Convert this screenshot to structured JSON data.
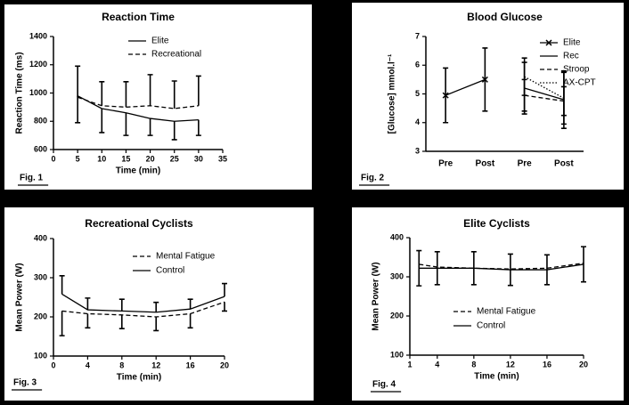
{
  "chart_data": [
    {
      "type": "line",
      "title": "Reaction Time",
      "xlabel": "Time (min)",
      "ylabel": "Reaction Time (ms)",
      "figure_label": "Fig. 1",
      "x": [
        5,
        10,
        15,
        20,
        25,
        30
      ],
      "xlim": [
        0,
        35
      ],
      "xticks": [
        0,
        5,
        10,
        15,
        20,
        25,
        30,
        35
      ],
      "ylim": [
        600,
        1400
      ],
      "yticks": [
        600,
        800,
        1000,
        1200,
        1400
      ],
      "series": [
        {
          "name": "Elite",
          "color": "#000000",
          "style": "solid",
          "values": [
            980,
            890,
            860,
            820,
            800,
            810
          ],
          "errors": [
            190,
            170,
            160,
            120,
            130,
            110
          ],
          "error_direction": "down"
        },
        {
          "name": "Recreational",
          "color": "#000000",
          "style": "dashed",
          "values": [
            970,
            910,
            900,
            910,
            890,
            910
          ],
          "errors": [
            220,
            170,
            180,
            220,
            195,
            210
          ],
          "error_direction": "up"
        }
      ]
    },
    {
      "type": "line",
      "title": "Blood Glucose",
      "ylabel": "[Glucose] mmol.l⁻¹",
      "figure_label": "Fig. 2",
      "categories": [
        "Pre",
        "Post",
        "Pre",
        "Post"
      ],
      "ylim": [
        3,
        7
      ],
      "yticks": [
        3,
        4,
        5,
        6,
        7
      ],
      "series": [
        {
          "name": "Elite",
          "color": "#000000",
          "style": "solid",
          "marker": "x",
          "values": [
            4.95,
            5.5,
            null,
            null
          ],
          "errors": [
            0.95,
            1.1,
            null,
            null
          ],
          "error_direction": "both"
        },
        {
          "name": "Rec",
          "color": "#000000",
          "style": "solid",
          "values": [
            null,
            null,
            5.2,
            4.8
          ],
          "errors": [
            null,
            null,
            0.9,
            1.0
          ],
          "error_direction": "both"
        },
        {
          "name": "Stroop",
          "color": "#000000",
          "style": "dashed",
          "values": [
            null,
            null,
            4.95,
            4.75
          ],
          "errors": [
            null,
            null,
            0.55,
            0.5
          ],
          "error_direction": "both"
        },
        {
          "name": "AX-CPT",
          "color": "#000000",
          "style": "dotted",
          "values": [
            null,
            null,
            5.6,
            4.85
          ],
          "errors": [
            null,
            null,
            0.65,
            0.9
          ],
          "error_direction": "both"
        }
      ]
    },
    {
      "type": "line",
      "title": "Recreational Cyclists",
      "xlabel": "Time (min)",
      "ylabel": "Mean  Power (W)",
      "figure_label": "Fig. 3",
      "x": [
        1,
        4,
        8,
        12,
        16,
        20
      ],
      "xlim": [
        0,
        20
      ],
      "xticks": [
        0,
        4,
        8,
        12,
        16,
        20
      ],
      "ylim": [
        100,
        400
      ],
      "yticks": [
        100,
        200,
        300,
        400
      ],
      "series": [
        {
          "name": "Mental Fatigue",
          "color": "#000000",
          "style": "dashed",
          "values": [
            215,
            208,
            205,
            200,
            208,
            238
          ],
          "errors": [
            63,
            36,
            35,
            35,
            36,
            23
          ],
          "error_direction": "down"
        },
        {
          "name": "Control",
          "color": "#000000",
          "style": "solid",
          "values": [
            258,
            218,
            215,
            212,
            220,
            252
          ],
          "errors": [
            47,
            30,
            30,
            25,
            25,
            33
          ],
          "error_direction": "up"
        }
      ]
    },
    {
      "type": "line",
      "title": "Elite Cyclists",
      "xlabel": "Time (min)",
      "ylabel": "Mean Power (W)",
      "figure_label": "Fig. 4",
      "x": [
        2,
        4,
        8,
        12,
        16,
        20
      ],
      "xlim": [
        1,
        20
      ],
      "xticks": [
        1,
        4,
        8,
        12,
        16,
        20
      ],
      "ylim": [
        100,
        400
      ],
      "yticks": [
        100,
        200,
        300,
        400
      ],
      "series": [
        {
          "name": "Mental Fatigue",
          "color": "#000000",
          "style": "dashed",
          "values": [
            332,
            325,
            322,
            320,
            322,
            335
          ]
        },
        {
          "name": "Control",
          "color": "#000000",
          "style": "solid",
          "values": [
            322,
            322,
            322,
            318,
            318,
            332
          ],
          "errors": [
            45,
            42,
            42,
            40,
            38,
            45
          ],
          "error_direction": "both"
        }
      ]
    }
  ]
}
